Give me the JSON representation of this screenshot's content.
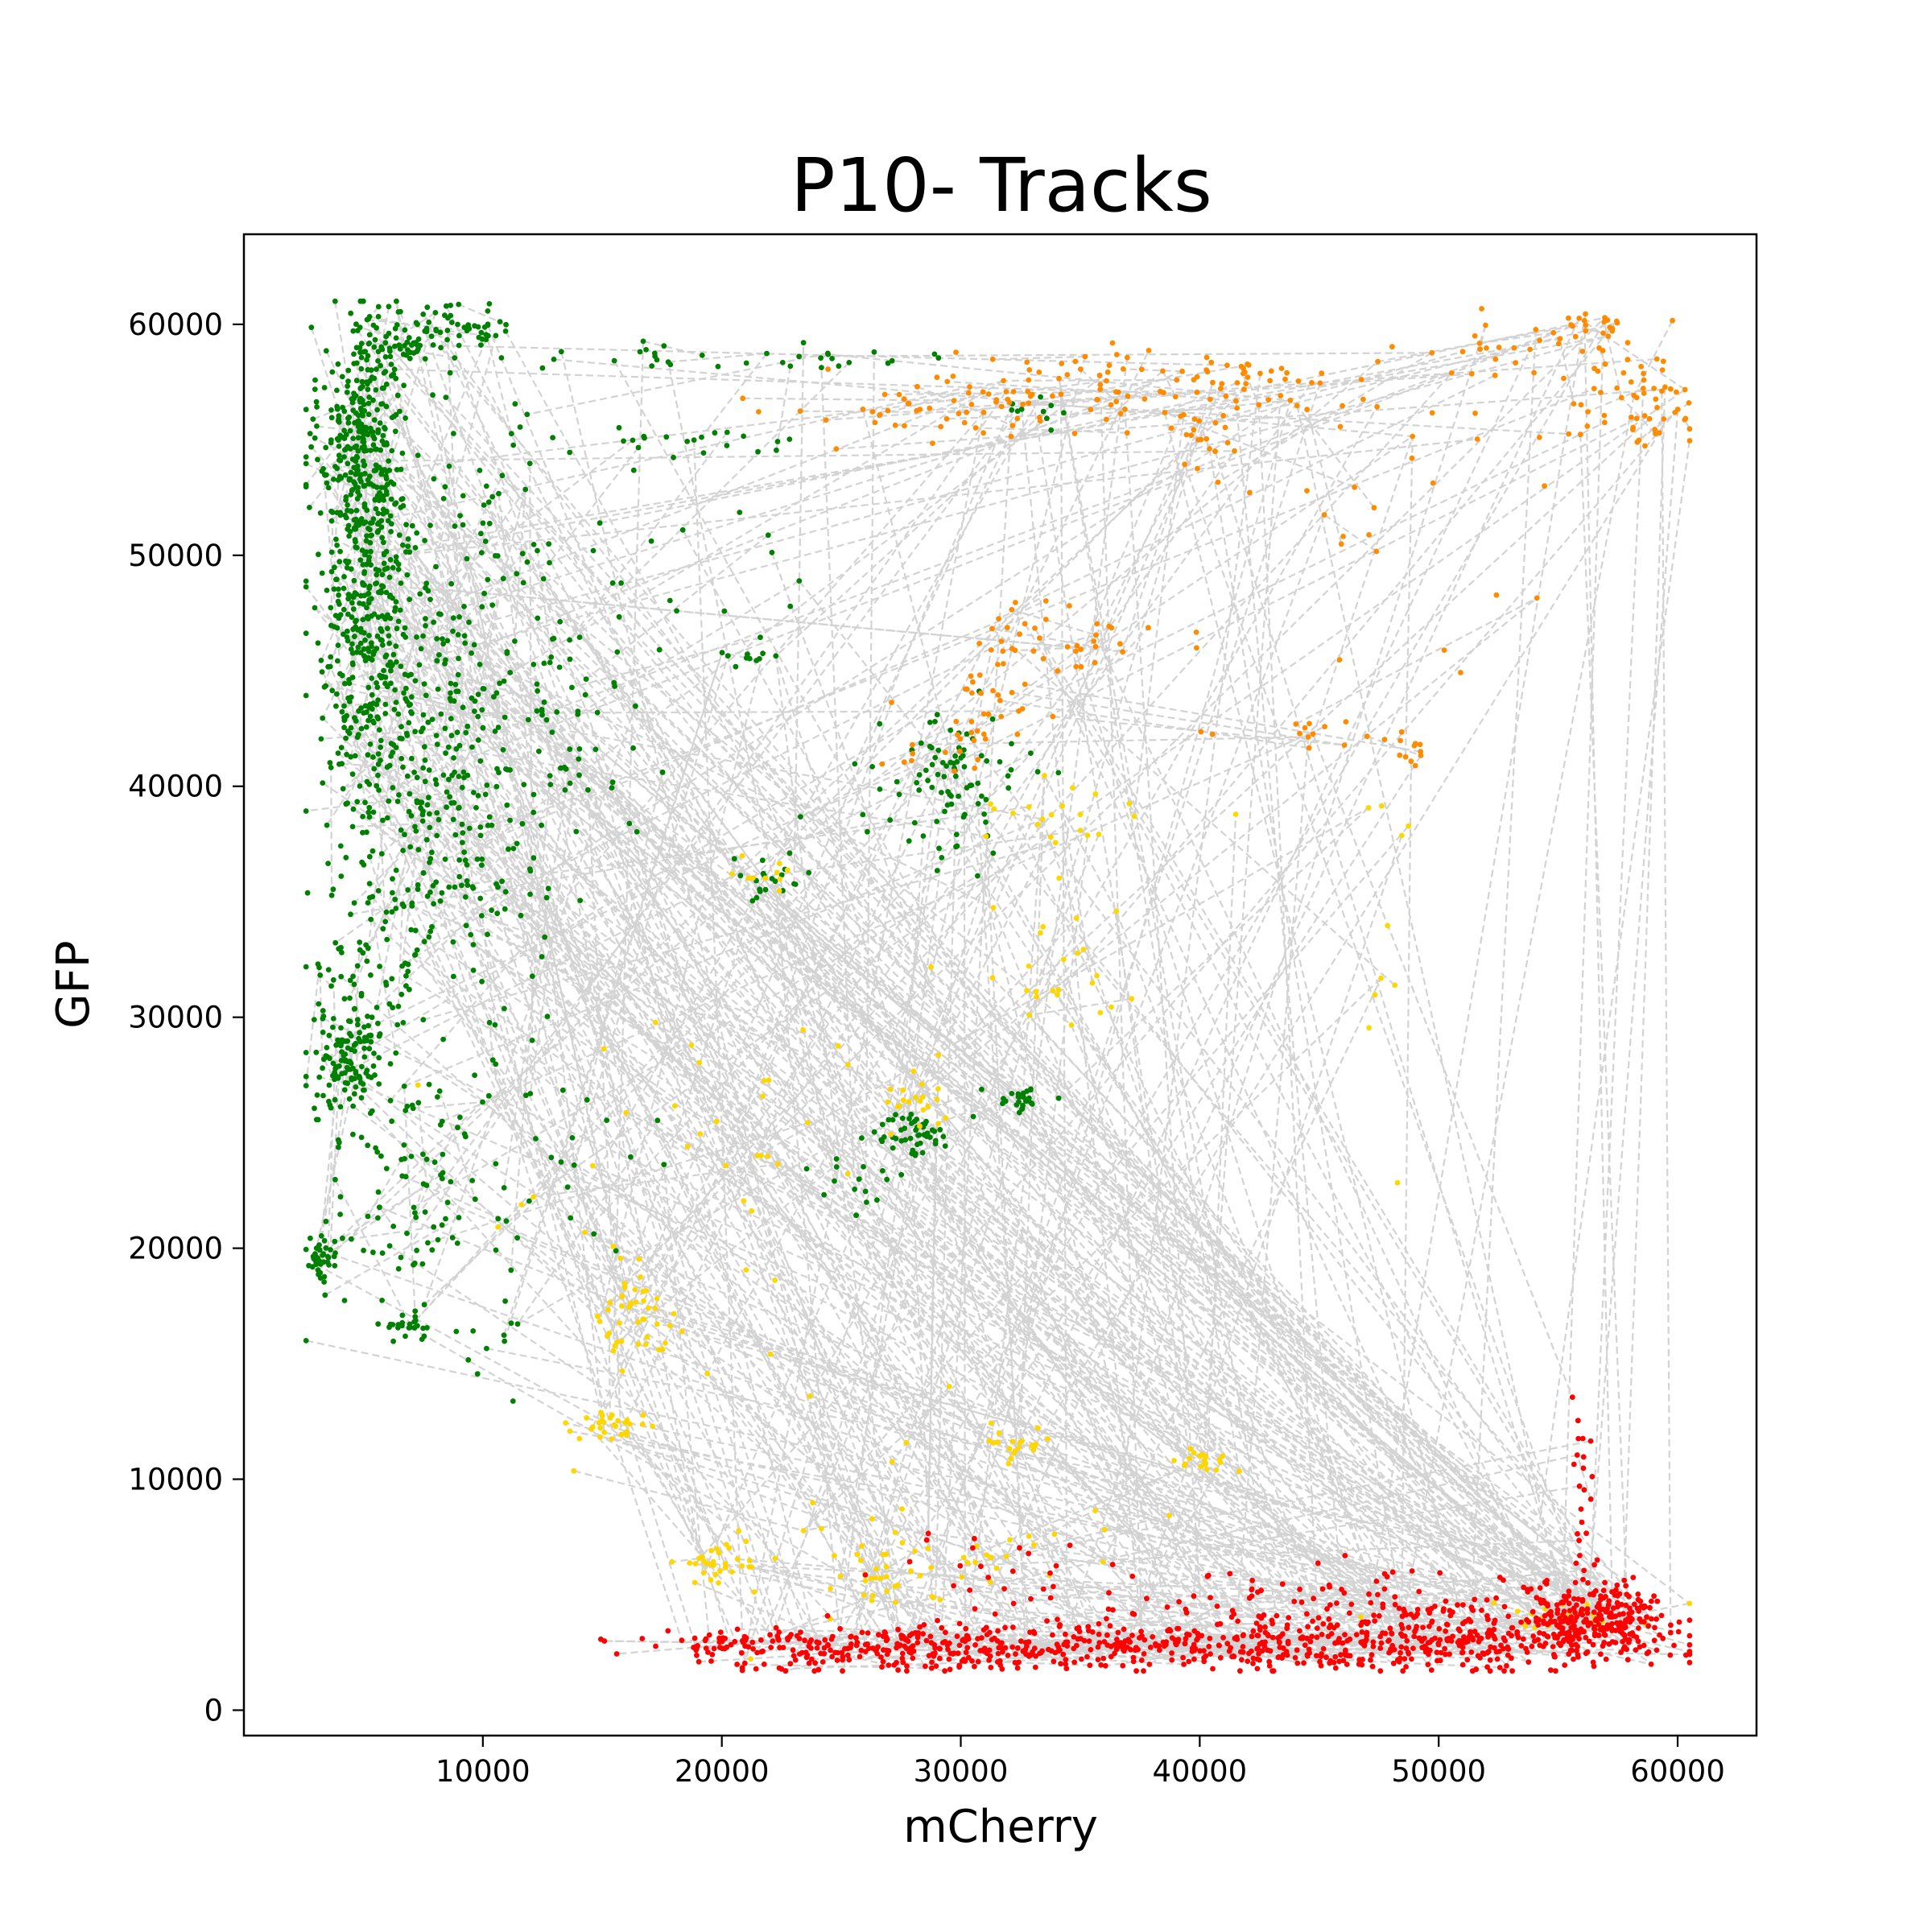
{
  "chart_data": {
    "type": "scatter",
    "title": "P10- Tracks",
    "xlabel": "mCherry",
    "ylabel": "GFP",
    "xlim": [
      0,
      63300
    ],
    "ylim": [
      -1100,
      63900
    ],
    "xticks": [
      10000,
      20000,
      30000,
      40000,
      50000,
      60000
    ],
    "yticks": [
      0,
      10000,
      20000,
      30000,
      40000,
      50000,
      60000
    ],
    "grid": false,
    "track_line_color": "#d3d3d3",
    "series": [
      {
        "color": "#008000",
        "clusters": [
          {
            "cx": 5000,
            "cy": 55000,
            "sx": 900,
            "sy": 2500,
            "n": 260
          },
          {
            "cx": 5000,
            "cy": 50000,
            "sx": 1100,
            "sy": 4000,
            "n": 240
          },
          {
            "cx": 5500,
            "cy": 44000,
            "sx": 1200,
            "sy": 2500,
            "n": 160
          },
          {
            "cx": 6500,
            "cy": 59500,
            "sx": 1000,
            "sy": 800,
            "n": 70
          },
          {
            "cx": 9500,
            "cy": 60000,
            "sx": 900,
            "sy": 500,
            "n": 35
          },
          {
            "cx": 9000,
            "cy": 45000,
            "sx": 2500,
            "sy": 5000,
            "n": 220
          },
          {
            "cx": 8500,
            "cy": 37000,
            "sx": 2000,
            "sy": 3500,
            "n": 160
          },
          {
            "cx": 5000,
            "cy": 33000,
            "sx": 1200,
            "sy": 3500,
            "n": 90
          },
          {
            "cx": 4300,
            "cy": 28000,
            "sx": 700,
            "sy": 1200,
            "n": 110
          },
          {
            "cx": 3200,
            "cy": 19500,
            "sx": 350,
            "sy": 500,
            "n": 40
          },
          {
            "cx": 7000,
            "cy": 23000,
            "sx": 2000,
            "sy": 2500,
            "n": 90
          },
          {
            "cx": 7000,
            "cy": 16600,
            "sx": 700,
            "sy": 250,
            "n": 25
          },
          {
            "cx": 29500,
            "cy": 40000,
            "sx": 1500,
            "sy": 1500,
            "n": 90
          },
          {
            "cx": 28000,
            "cy": 25000,
            "sx": 800,
            "sy": 500,
            "n": 50
          },
          {
            "cx": 32500,
            "cy": 26400,
            "sx": 600,
            "sy": 300,
            "n": 25
          },
          {
            "cx": 22000,
            "cy": 36000,
            "sx": 700,
            "sy": 600,
            "n": 20
          },
          {
            "cx": 25500,
            "cy": 23000,
            "sx": 1500,
            "sy": 700,
            "n": 15
          },
          {
            "cx": 20000,
            "cy": 58500,
            "sx": 5500,
            "sy": 300,
            "n": 35
          },
          {
            "cx": 18000,
            "cy": 55000,
            "sx": 5000,
            "sy": 600,
            "n": 25
          },
          {
            "cx": 16000,
            "cy": 49000,
            "sx": 3500,
            "sy": 3000,
            "n": 25
          },
          {
            "cx": 14000,
            "cy": 42000,
            "sx": 1500,
            "sy": 2500,
            "n": 30
          },
          {
            "cx": 12500,
            "cy": 24000,
            "sx": 2500,
            "sy": 4000,
            "n": 30
          },
          {
            "cx": 11000,
            "cy": 15000,
            "sx": 1000,
            "sy": 1500,
            "n": 10
          },
          {
            "cx": 33000,
            "cy": 56000,
            "sx": 800,
            "sy": 400,
            "n": 10
          },
          {
            "cx": 21000,
            "cy": 45500,
            "sx": 800,
            "sy": 300,
            "n": 10
          }
        ]
      },
      {
        "color": "#ff8c00",
        "clusters": [
          {
            "cx": 37000,
            "cy": 57500,
            "sx": 5500,
            "sy": 800,
            "n": 90
          },
          {
            "cx": 29000,
            "cy": 56000,
            "sx": 3000,
            "sy": 600,
            "n": 45
          },
          {
            "cx": 58000,
            "cy": 56800,
            "sx": 1800,
            "sy": 1300,
            "n": 60
          },
          {
            "cx": 56500,
            "cy": 59800,
            "sx": 1000,
            "sy": 300,
            "n": 25
          },
          {
            "cx": 52000,
            "cy": 59000,
            "sx": 1500,
            "sy": 600,
            "n": 20
          },
          {
            "cx": 40000,
            "cy": 55000,
            "sx": 600,
            "sy": 1200,
            "n": 20
          },
          {
            "cx": 34000,
            "cy": 46500,
            "sx": 2500,
            "sy": 800,
            "n": 40
          },
          {
            "cx": 30500,
            "cy": 42500,
            "sx": 1500,
            "sy": 1200,
            "n": 40
          },
          {
            "cx": 45000,
            "cy": 42300,
            "sx": 2000,
            "sy": 500,
            "n": 15
          },
          {
            "cx": 49000,
            "cy": 41500,
            "sx": 500,
            "sy": 500,
            "n": 10
          },
          {
            "cx": 49000,
            "cy": 51000,
            "sx": 4500,
            "sy": 3000,
            "n": 20
          },
          {
            "cx": 45000,
            "cy": 56500,
            "sx": 4000,
            "sy": 900,
            "n": 20
          }
        ]
      },
      {
        "color": "#ffd700",
        "clusters": [
          {
            "cx": 16500,
            "cy": 17000,
            "sx": 800,
            "sy": 1200,
            "n": 45
          },
          {
            "cx": 15500,
            "cy": 12400,
            "sx": 800,
            "sy": 300,
            "n": 30
          },
          {
            "cx": 19500,
            "cy": 6200,
            "sx": 800,
            "sy": 400,
            "n": 30
          },
          {
            "cx": 26500,
            "cy": 5800,
            "sx": 1500,
            "sy": 600,
            "n": 30
          },
          {
            "cx": 28000,
            "cy": 26400,
            "sx": 700,
            "sy": 600,
            "n": 20
          },
          {
            "cx": 40000,
            "cy": 10800,
            "sx": 700,
            "sy": 300,
            "n": 20
          },
          {
            "cx": 34500,
            "cy": 33000,
            "sx": 1500,
            "sy": 2500,
            "n": 25
          },
          {
            "cx": 35000,
            "cy": 39000,
            "sx": 2500,
            "sy": 600,
            "n": 20
          },
          {
            "cx": 32500,
            "cy": 11500,
            "sx": 700,
            "sy": 500,
            "n": 20
          },
          {
            "cx": 22000,
            "cy": 36200,
            "sx": 600,
            "sy": 400,
            "n": 10
          },
          {
            "cx": 55000,
            "cy": 4000,
            "sx": 2500,
            "sy": 400,
            "n": 25
          },
          {
            "cx": 20000,
            "cy": 25000,
            "sx": 4000,
            "sy": 3500,
            "n": 35
          },
          {
            "cx": 33000,
            "cy": 7000,
            "sx": 3000,
            "sy": 800,
            "n": 20
          },
          {
            "cx": 48000,
            "cy": 34000,
            "sx": 600,
            "sy": 5000,
            "n": 10
          },
          {
            "cx": 22000,
            "cy": 9000,
            "sx": 4000,
            "sy": 3000,
            "n": 20
          }
        ]
      },
      {
        "color": "#ff0000",
        "clusters": [
          {
            "cx": 40000,
            "cy": 2800,
            "sx": 9000,
            "sy": 550,
            "n": 500
          },
          {
            "cx": 56500,
            "cy": 3900,
            "sx": 1500,
            "sy": 700,
            "n": 260
          },
          {
            "cx": 49000,
            "cy": 3600,
            "sx": 4500,
            "sy": 900,
            "n": 220
          },
          {
            "cx": 27000,
            "cy": 2700,
            "sx": 3500,
            "sy": 500,
            "n": 150
          },
          {
            "cx": 21000,
            "cy": 2800,
            "sx": 2000,
            "sy": 300,
            "n": 45
          },
          {
            "cx": 56000,
            "cy": 9000,
            "sx": 400,
            "sy": 2500,
            "n": 30
          },
          {
            "cx": 33000,
            "cy": 6000,
            "sx": 3000,
            "sy": 1000,
            "n": 30
          },
          {
            "cx": 44000,
            "cy": 5200,
            "sx": 5000,
            "sy": 500,
            "n": 30
          }
        ]
      }
    ]
  }
}
